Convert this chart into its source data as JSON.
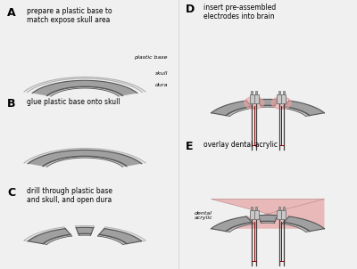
{
  "bg_color": "#f0f0f0",
  "skull_color": "#aaaaaa",
  "skull_edge": "#555555",
  "dura_color": "#cccccc",
  "plastic_color": "#e0e0e0",
  "plastic_edge": "#aaaaaa",
  "dental_color": "#e8b0b0",
  "dental_edge": "#c09090",
  "electrode_fill": "#c8c8c8",
  "electrode_edge": "#707070",
  "wire_color": "#404040",
  "conn_wire_color": "#800000",
  "pink_color": "#e8a0a0",
  "label_A": "A",
  "label_B": "B",
  "label_C": "C",
  "label_D": "D",
  "label_E": "E",
  "text_A": "prepare a plastic base to\nmatch expose skull area",
  "text_B": "glue plastic base onto skull",
  "text_C": "drill through plastic base\nand skull, and open dura",
  "text_D": "insert pre-assembled\nelectrodes into brain",
  "text_E": "overlay dental acrylic",
  "label_plastic_base": "plastic base",
  "label_skull": "skull",
  "label_dura": "dura",
  "label_dental_acrylic": "dental\nacrylic"
}
